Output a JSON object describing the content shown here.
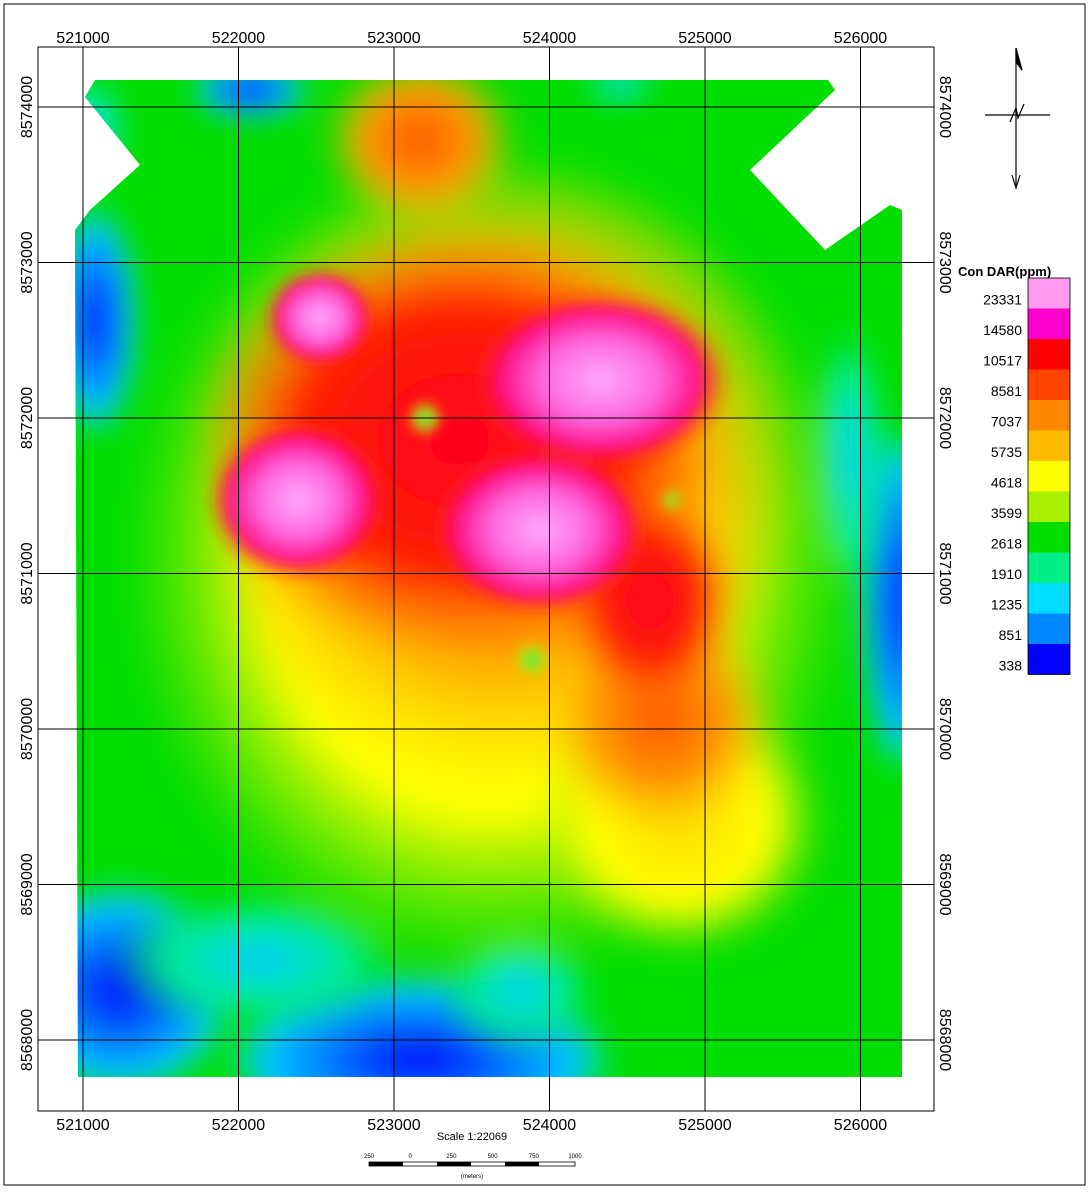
{
  "map": {
    "x_ticks": [
      "521000",
      "522000",
      "523000",
      "524000",
      "525000",
      "526000"
    ],
    "y_ticks": [
      "8574000",
      "8573000",
      "8572000",
      "8571000",
      "8570000",
      "8569000",
      "8568000"
    ]
  },
  "legend": {
    "title": "Con DAR(ppm)",
    "levels": [
      "23331",
      "14580",
      "10517",
      "8581",
      "7037",
      "5735",
      "4618",
      "3599",
      "2618",
      "1910",
      "1235",
      "851",
      "338"
    ],
    "colors": [
      "#ff99ee",
      "#ff00cc",
      "#ff0000",
      "#ff4400",
      "#ff8800",
      "#ffbb00",
      "#ffff00",
      "#aaee00",
      "#00dd00",
      "#00ee88",
      "#00ddff",
      "#0088ff",
      "#0000ff"
    ]
  },
  "scale": {
    "label": "Scale 1:22069",
    "ticks": [
      "250",
      "0",
      "250",
      "500",
      "750",
      "1000"
    ],
    "units": "(meters)"
  },
  "north_arrow": "north-arrow-icon"
}
